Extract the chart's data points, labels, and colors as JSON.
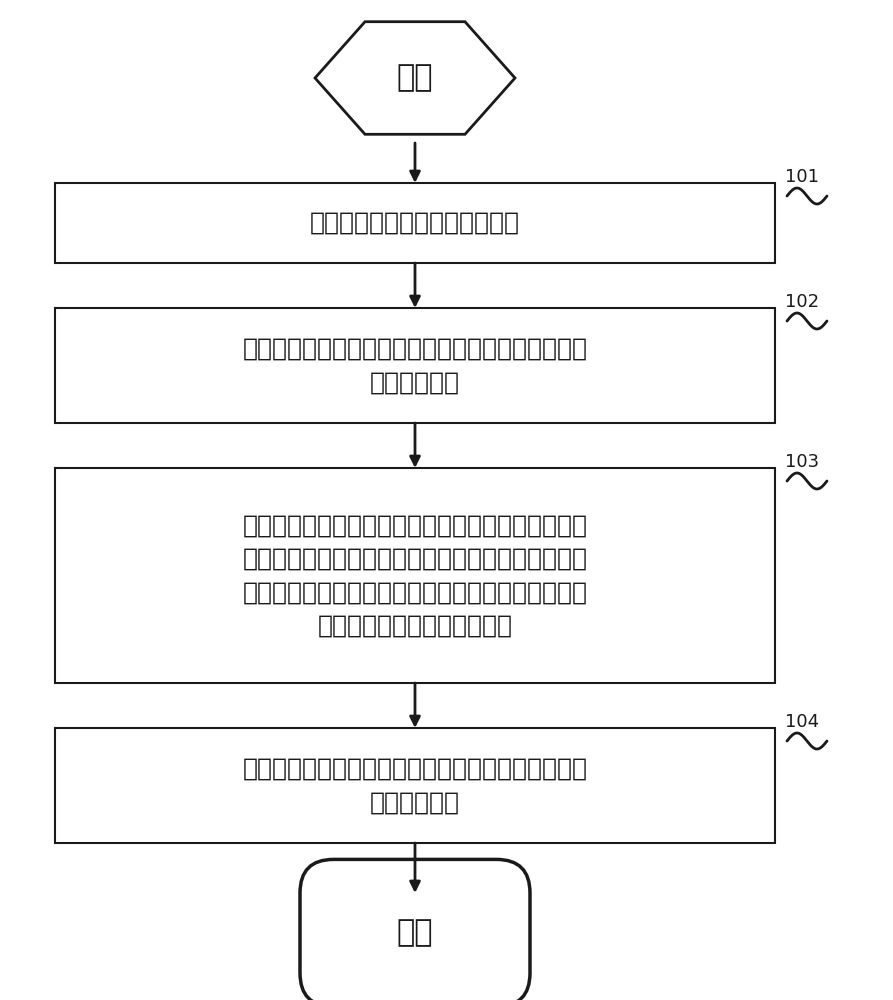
{
  "bg_color": "#ffffff",
  "line_color": "#1a1a1a",
  "text_color": "#1a1a1a",
  "start_text": "开始",
  "end_text": "结束",
  "boxes": [
    {
      "text": "移动终端与充电器建立充电连接",
      "label": "101",
      "lines": 1
    },
    {
      "text": "获取当前充电环境的环境参数，并将所述环境参数上\n传到充电云端",
      "label": "102",
      "lines": 2
    },
    {
      "text": "接收所述充电云端根据历史充电数据返回的与所述环\n境参数对应的目标充电参数，所述目标充电参数是指\n所述历史充电数据中，与当前充电环境的环境参数对\n应的充电时间最短的充电参数",
      "label": "103",
      "lines": 4
    },
    {
      "text": "根据所述目标充电参数，利用所述充电器对所述移动\n终端进行充电",
      "label": "104",
      "lines": 2
    }
  ]
}
